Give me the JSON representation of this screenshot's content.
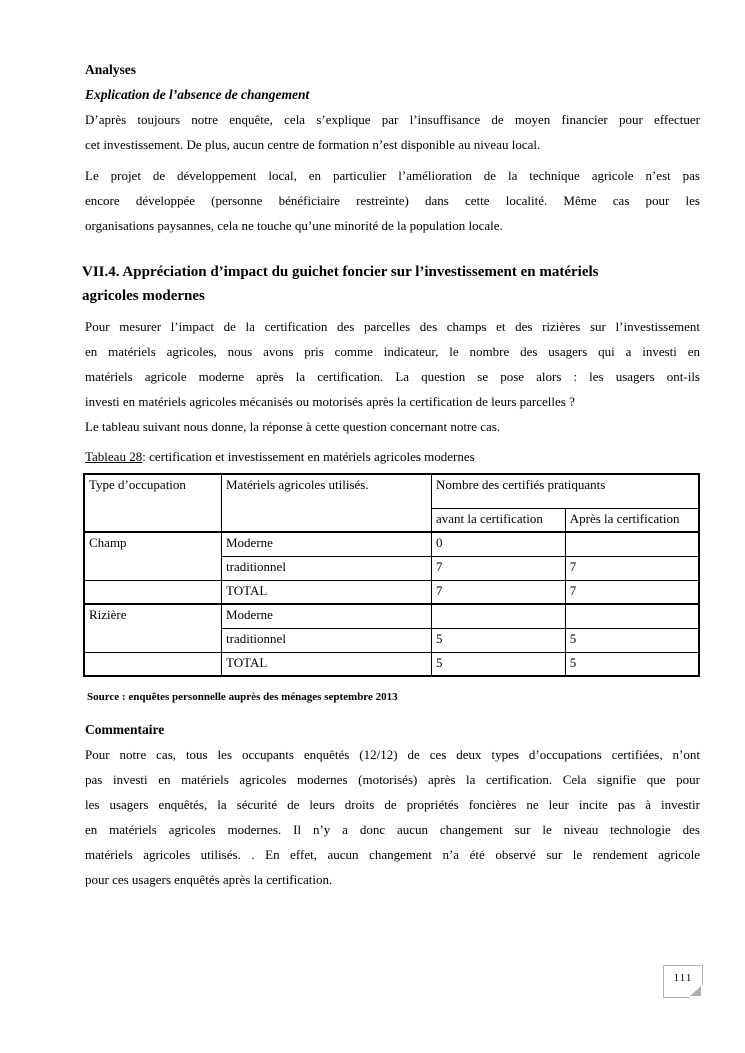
{
  "colors": {
    "paper": "#ffffff",
    "ink": "#000000",
    "page_box_border": "#b3b3b3",
    "fold_gray": "#b0b0b0"
  },
  "page": {
    "analyses_heading": "Analyses",
    "explication_heading": "Explication de l’absence de changement",
    "para_insuffisance_lines": [
      "D’après toujours notre enquête, cela s’explique par l’insuffisance de moyen financier pour effectuer",
      "cet investissement. De plus,  aucun centre de formation n’est  disponible au niveau local."
    ],
    "para_projet_lines": [
      "Le projet de développement local, en particulier l’amélioration de la technique agricole n’est pas",
      "encore développée (personne bénéficiaire restreinte) dans cette localité. Même cas  pour les",
      "organisations paysannes, cela  ne touche qu’une minorité de la population locale."
    ],
    "section_heading_lines": [
      "VII.4. Appréciation d’impact  du guichet foncier sur l’investissement en matériels",
      "agricoles modernes"
    ],
    "para_mesurer_lines": [
      "Pour mesurer l’impact de la certification des parcelles des champs et des rizières sur l’investissement",
      "en matériels agricoles, nous avons pris comme indicateur,  le nombre  des usagers qui a investi en",
      "matériels agricole moderne   après la certification. La question se pose alors : les usagers ont-ils",
      "investi en matériels agricoles mécanisés ou motorisés après la certification de leurs parcelles ?"
    ],
    "para_tableau_line": "Le tableau suivant nous donne, la réponse à cette question concernant notre cas.",
    "table": {
      "caption_label": "Tableau 28",
      "caption_rest": ": certification et investissement en matériels agricoles modernes",
      "header": {
        "col_occupation": "Type d’occupation",
        "col_materiels": "Matériels agricoles utilisés.",
        "col_nombre": "Nombre des certifiés pratiquants",
        "col_avant": "avant la certification",
        "col_apres": "Après la certification"
      },
      "rows": [
        {
          "occupation": "Champ",
          "materiel": "Moderne",
          "avant": "0",
          "apres": ""
        },
        {
          "materiel": "traditionnel",
          "avant": "7",
          "apres": "7"
        },
        {
          "occupation": "",
          "materiel": "TOTAL",
          "avant": "7",
          "apres": "7"
        },
        {
          "occupation": "Rizière",
          "materiel": "Moderne",
          "avant": "",
          "apres": ""
        },
        {
          "materiel": "traditionnel",
          "avant": "5",
          "apres": "5"
        },
        {
          "occupation": "",
          "materiel": "TOTAL",
          "avant": "5",
          "apres": "5"
        }
      ]
    },
    "source_note": "Source : enquêtes personnelle auprès des ménages septembre 2013",
    "commentaire_heading": "Commentaire",
    "para_commentaire_lines": [
      "Pour  notre cas, tous les occupants enquêtés (12/12) de ces deux types d’occupations certifiées, n’ont",
      "pas investi en matériels agricoles modernes (motorisés)  après la certification.  Cela signifie que pour",
      "les  usagers enquêtés, la sécurité de leurs droits de propriétés foncières  ne leur  incite  pas  à investir",
      "en matériels agricoles modernes. Il n’y a donc aucun changement sur le niveau technologie des",
      "matériels agricoles utilisés. . En effet, aucun changement n’a été observé sur le rendement agricole",
      "pour ces usagers enquêtés après la certification."
    ],
    "page_number": "111"
  }
}
